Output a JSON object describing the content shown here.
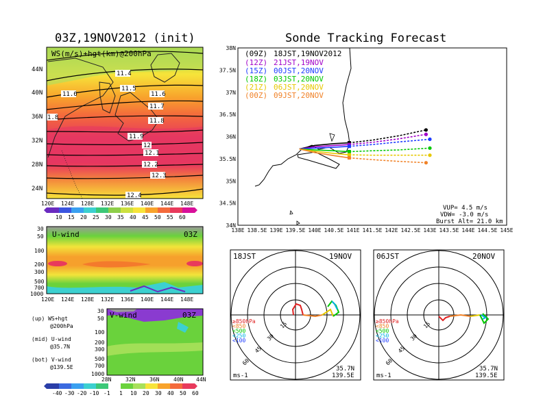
{
  "left": {
    "title": "03Z,19NOV2012 (init)",
    "map": {
      "label": "WS(m/s)+hgt(km)@200hPa",
      "lat_ticks": [
        "44N",
        "40N",
        "36N",
        "32N",
        "28N",
        "24N"
      ],
      "lon_ticks": [
        "120E",
        "124E",
        "128E",
        "132E",
        "136E",
        "140E",
        "144E",
        "148E"
      ],
      "contour_labels": [
        "11.4",
        "11.5",
        "11.6",
        "11.6",
        "11.7",
        "11.8",
        "11.9",
        "12",
        "12.1",
        "12.2",
        "12.3",
        "12.4",
        "1.8"
      ],
      "colorbar_labels": [
        "10",
        "15",
        "20",
        "25",
        "30",
        "35",
        "40",
        "45",
        "50",
        "55",
        "60"
      ]
    },
    "uwind": {
      "label": "U-wind",
      "time": "03Z",
      "p_ticks": [
        "30",
        "50",
        "100",
        "200",
        "300",
        "500",
        "700",
        "1000"
      ],
      "lon_ticks": [
        "120E",
        "124E",
        "128E",
        "132E",
        "136E",
        "140E",
        "144E",
        "148E"
      ]
    },
    "vwind": {
      "label": "V-wind",
      "time": "03Z",
      "p_ticks": [
        "30",
        "50",
        "100",
        "200",
        "300",
        "500",
        "700",
        "1000"
      ],
      "lat_ticks": [
        "28N",
        "32N",
        "36N",
        "40N",
        "44N"
      ],
      "colorbar_labels": [
        "-40",
        "-30",
        "-20",
        "-10",
        "-1",
        "1",
        "10",
        "20",
        "30",
        "40",
        "50",
        "60"
      ]
    },
    "legend": {
      "up": "(up) WS+hgt",
      "up2": "@200hPa",
      "mid": "(mid) U-wind",
      "mid2": "@35.7N",
      "bot": "(bot) V-wind",
      "bot2": "@139.5E"
    }
  },
  "right": {
    "title": "Sonde Tracking Forecast",
    "lat_ticks": [
      "38N",
      "37.5N",
      "37N",
      "36.5N",
      "36N",
      "35.5N",
      "35N",
      "34.5N",
      "34N"
    ],
    "lon_ticks": [
      "138E",
      "138.5E",
      "139E",
      "139.5E",
      "140E",
      "140.5E",
      "141E",
      "141.5E",
      "142E",
      "142.5E",
      "143E",
      "143.5E",
      "144E",
      "144.5E",
      "145E"
    ],
    "runs": [
      {
        "utc": "(09Z)",
        "jst": "18JST,19NOV2012",
        "color": "#000000"
      },
      {
        "utc": "(12Z)",
        "jst": "21JST,19NOV",
        "color": "#a000c8"
      },
      {
        "utc": "(15Z)",
        "jst": "00JST,20NOV",
        "color": "#1e3cff"
      },
      {
        "utc": "(18Z)",
        "jst": "03JST,20NOV",
        "color": "#00c800"
      },
      {
        "utc": "(21Z)",
        "jst": "06JST,20NOV",
        "color": "#e6c800"
      },
      {
        "utc": "(00Z)",
        "jst": "09JST,20NOV",
        "color": "#f08228"
      }
    ],
    "params": {
      "vup": "VUP= 4.5 m/s",
      "vdw": "VDW= -3.0 m/s",
      "burst": "Burst Alt= 21.0 km"
    },
    "polar_left": {
      "time": "18JST",
      "date": "19NOV",
      "rings": [
        "15",
        "30",
        "45",
        "60"
      ],
      "levels": [
        "≥850hPa",
        "<850",
        "<500",
        "<250",
        "<100"
      ],
      "unit": "ms-1",
      "lat": "35.7N",
      "lon": "139.5E"
    },
    "polar_right": {
      "time": "06JST",
      "date": "20NOV",
      "rings": [
        "15",
        "30",
        "45",
        "60"
      ],
      "levels": [
        "≥850hPa",
        "<850",
        "<500",
        "<250",
        "<100"
      ],
      "unit": "ms-1",
      "lat": "35.7N",
      "lon": "139.5E"
    }
  },
  "chart_data": [
    {
      "type": "line",
      "title": "Sonde Tracking Forecast",
      "xlabel": "",
      "ylabel": "",
      "xlim": [
        138,
        145
      ],
      "ylim": [
        34,
        38
      ],
      "series": [
        {
          "name": "(09Z) 18JST,19NOV2012",
          "x": [
            139.6,
            140.0,
            140.5,
            140.9,
            141.5,
            142.2,
            142.9
          ],
          "y": [
            35.72,
            35.8,
            35.84,
            35.86,
            35.92,
            36.02,
            36.15
          ]
        },
        {
          "name": "(12Z) 21JST,19NOV",
          "x": [
            139.6,
            140.0,
            140.5,
            140.9,
            141.5,
            142.2,
            142.9
          ],
          "y": [
            35.72,
            35.77,
            35.8,
            35.82,
            35.87,
            35.95,
            36.05
          ]
        },
        {
          "name": "(15Z) 00JST,20NOV",
          "x": [
            139.6,
            140.0,
            140.5,
            140.9,
            141.5,
            142.2,
            143.0
          ],
          "y": [
            35.72,
            35.74,
            35.76,
            35.78,
            35.82,
            35.88,
            35.94
          ]
        },
        {
          "name": "(18Z) 03JST,20NOV",
          "x": [
            139.6,
            140.0,
            140.5,
            140.9,
            141.5,
            142.2,
            143.0
          ],
          "y": [
            35.72,
            35.7,
            35.68,
            35.66,
            35.68,
            35.7,
            35.74
          ]
        },
        {
          "name": "(21Z) 06JST,20NOV",
          "x": [
            139.6,
            140.0,
            140.5,
            140.9,
            141.5,
            142.2,
            143.0
          ],
          "y": [
            35.72,
            35.67,
            35.62,
            35.59,
            35.58,
            35.58,
            35.58
          ]
        },
        {
          "name": "(00Z) 09JST,20NOV",
          "x": [
            139.6,
            140.0,
            140.5,
            140.9,
            141.5,
            142.2,
            142.9
          ],
          "y": [
            35.72,
            35.64,
            35.57,
            35.52,
            35.48,
            35.44,
            35.41
          ]
        }
      ]
    }
  ]
}
